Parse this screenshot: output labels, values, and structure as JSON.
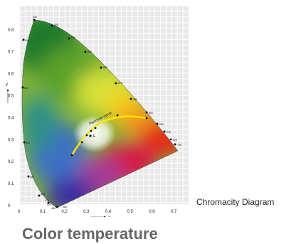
{
  "caption": "Chromacity Diagram",
  "title": "Color temperature",
  "diagram": {
    "x_axis_letter": "x",
    "y_axis_letter": "y",
    "x_ticks": [
      "0",
      "0.1",
      "0.2",
      "0.3",
      "0.4",
      "0.5",
      "0.6",
      "0.7"
    ],
    "y_ticks": [
      "0",
      "0.1",
      "0.2",
      "0.3",
      "0.4",
      "0.5",
      "0.6",
      "0.7",
      "0.8"
    ],
    "planckian_label": "Planckian curve",
    "white_point_label": "E",
    "wavelength_labels": [
      "380",
      "460",
      "470",
      "475",
      "480",
      "485",
      "490",
      "500",
      "510",
      "520",
      "530",
      "540",
      "550",
      "560",
      "570",
      "580",
      "590",
      "600",
      "610",
      "620",
      "700"
    ]
  },
  "colors": {
    "grid_background": "#e9e9e9",
    "grid_line": "#ffffff",
    "planckian_curve": "#ffe400",
    "title": "#666666"
  }
}
